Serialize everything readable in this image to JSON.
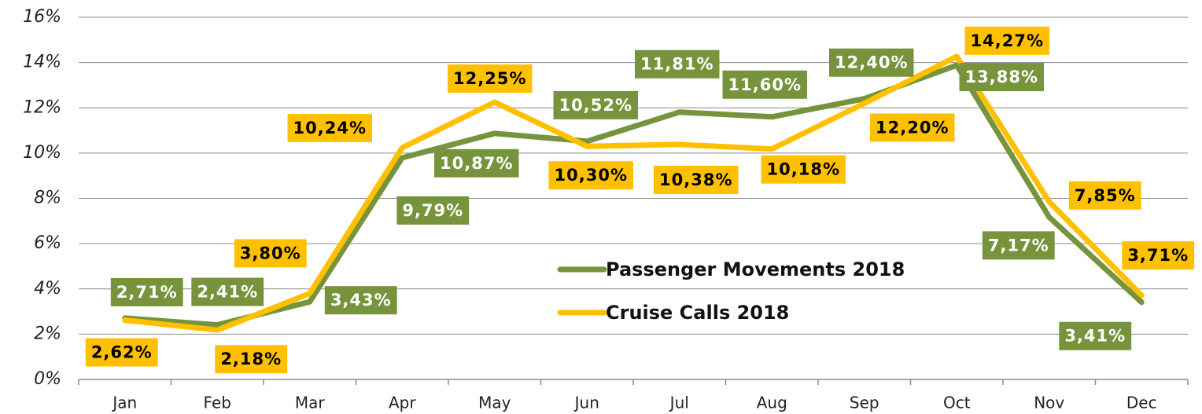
{
  "chart_data": {
    "type": "line",
    "categories": [
      "Jan",
      "Feb",
      "Mar",
      "Apr",
      "May",
      "Jun",
      "Jul",
      "Aug",
      "Sep",
      "Oct",
      "Nov",
      "Dec"
    ],
    "series": [
      {
        "name": "Passenger Movements 2018",
        "color": "#77933c",
        "values": [
          2.71,
          2.41,
          3.43,
          9.79,
          10.87,
          10.52,
          11.81,
          11.6,
          12.4,
          13.88,
          7.17,
          3.41
        ],
        "value_labels": [
          "2,71%",
          "2,41%",
          "3,43%",
          "9,79%",
          "10,87%",
          "10,52%",
          "11,81%",
          "11,60%",
          "12,40%",
          "13,88%",
          "7,17%",
          "3,41%"
        ]
      },
      {
        "name": "Cruise Calls 2018",
        "color": "#ffc000",
        "values": [
          2.62,
          2.18,
          3.8,
          10.24,
          12.25,
          10.3,
          10.38,
          10.18,
          12.2,
          14.27,
          7.85,
          3.71
        ],
        "value_labels": [
          "2,62%",
          "2,18%",
          "3,80%",
          "10,24%",
          "12,25%",
          "10,30%",
          "10,38%",
          "10,18%",
          "12,20%",
          "14,27%",
          "7,85%",
          "3,71%"
        ]
      }
    ],
    "ylim": [
      0,
      16
    ],
    "yticks": [
      {
        "value": 0,
        "label": "0%"
      },
      {
        "value": 2,
        "label": "2%"
      },
      {
        "value": 4,
        "label": "4%"
      },
      {
        "value": 6,
        "label": "6%"
      },
      {
        "value": 8,
        "label": "8%"
      },
      {
        "value": 10,
        "label": "10%"
      },
      {
        "value": 12,
        "label": "12%"
      },
      {
        "value": 14,
        "label": "14%"
      },
      {
        "value": 16,
        "label": "16%"
      }
    ],
    "grid": true
  }
}
